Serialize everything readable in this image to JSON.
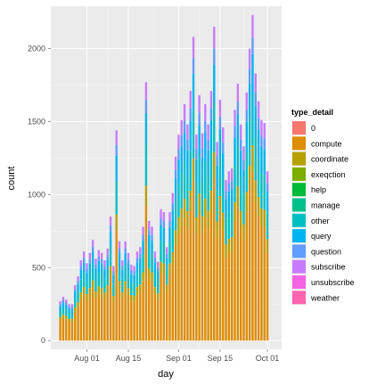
{
  "chart_data": {
    "type": "bar",
    "stacked": true,
    "x_axis": {
      "label": "day",
      "ticks": [
        "Aug 01",
        "Aug 15",
        "Sep 01",
        "Sep 15",
        "Oct 01"
      ],
      "tick_dates": [
        "2013-08-01",
        "2013-08-15",
        "2013-09-01",
        "2013-09-15",
        "2013-10-01"
      ],
      "first_date": "2013-07-23",
      "last_date": "2013-10-03"
    },
    "y_axis": {
      "label": "count",
      "ticks": [
        0,
        500,
        1000,
        1500,
        2000
      ],
      "ylim": [
        -60,
        2290
      ]
    },
    "grid": true,
    "legend": {
      "title": "type_detail",
      "placement": "right",
      "entries": [
        {
          "name": "0",
          "color": "#F8766D"
        },
        {
          "name": "compute",
          "color": "#DE8C00"
        },
        {
          "name": "coordinate",
          "color": "#B79F00"
        },
        {
          "name": "exeqction",
          "color": "#7CAE00"
        },
        {
          "name": "help",
          "color": "#00BA38"
        },
        {
          "name": "manage",
          "color": "#00C08B"
        },
        {
          "name": "other",
          "color": "#00BFC4"
        },
        {
          "name": "query",
          "color": "#00B4F0"
        },
        {
          "name": "question",
          "color": "#619CFF"
        },
        {
          "name": "subscribe",
          "color": "#C77CFF"
        },
        {
          "name": "unsubscribe",
          "color": "#F564E3"
        },
        {
          "name": "weather",
          "color": "#FF64B0"
        }
      ]
    },
    "bar_totals": [
      270,
      300,
      280,
      250,
      250,
      380,
      440,
      550,
      610,
      530,
      600,
      690,
      560,
      620,
      600,
      550,
      630,
      850,
      510,
      1440,
      680,
      550,
      680,
      600,
      520,
      510,
      610,
      640,
      780,
      1770,
      820,
      780,
      610,
      540,
      900,
      880,
      640,
      880,
      1010,
      1260,
      1410,
      1510,
      1620,
      1480,
      1710,
      2080,
      1410,
      1680,
      1420,
      1620,
      1480,
      1710,
      2150,
      1360,
      1650,
      1460,
      1100,
      1160,
      1180,
      1580,
      1760,
      1480,
      1330,
      1700,
      2000,
      2230,
      1830,
      1640,
      1510,
      1490,
      1160
    ],
    "bar_composition": [
      {
        "compute": 0.52,
        "coordinate": 0.08,
        "other": 0.16,
        "query": 0.12,
        "question": 0.05,
        "subscribe": 0.07
      }
    ]
  }
}
